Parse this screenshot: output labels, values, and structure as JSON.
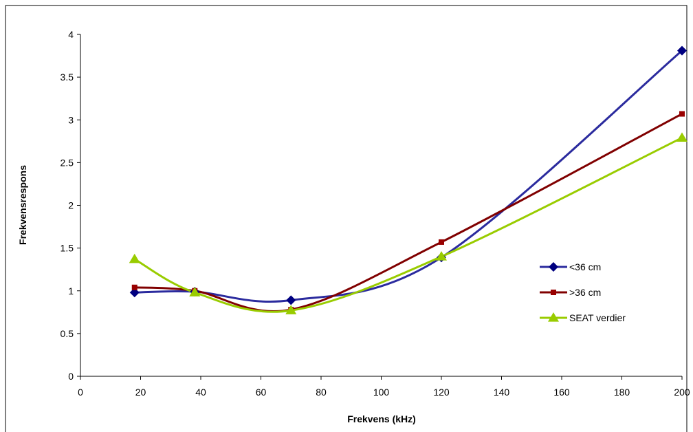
{
  "chart_data": {
    "type": "line",
    "title": "",
    "xlabel": "Frekvens (kHz)",
    "ylabel": "Frekvensrespons",
    "xlim": [
      0,
      200
    ],
    "ylim": [
      0,
      4
    ],
    "xticks": [
      0,
      20,
      40,
      60,
      80,
      100,
      120,
      140,
      160,
      180,
      200
    ],
    "yticks": [
      0,
      0.5,
      1,
      1.5,
      2,
      2.5,
      3,
      3.5,
      4
    ],
    "grid": false,
    "legend_position": "right",
    "series": [
      {
        "name": "<36 cm",
        "color": "#2b2b9e",
        "marker_color": "#000080",
        "marker": "diamond",
        "x": [
          18,
          38,
          70,
          120,
          200
        ],
        "y": [
          0.98,
          0.99,
          0.89,
          1.39,
          3.81
        ]
      },
      {
        "name": ">36 cm",
        "color": "#800000",
        "marker_color": "#990000",
        "marker": "square",
        "x": [
          18,
          38,
          70,
          120,
          200
        ],
        "y": [
          1.04,
          1.0,
          0.78,
          1.57,
          3.07
        ]
      },
      {
        "name": "SEAT verdier",
        "color": "#99cc00",
        "marker_color": "#99cc00",
        "marker": "triangle",
        "x": [
          18,
          38,
          70,
          120,
          200
        ],
        "y": [
          1.37,
          0.98,
          0.77,
          1.4,
          2.79
        ]
      }
    ]
  }
}
